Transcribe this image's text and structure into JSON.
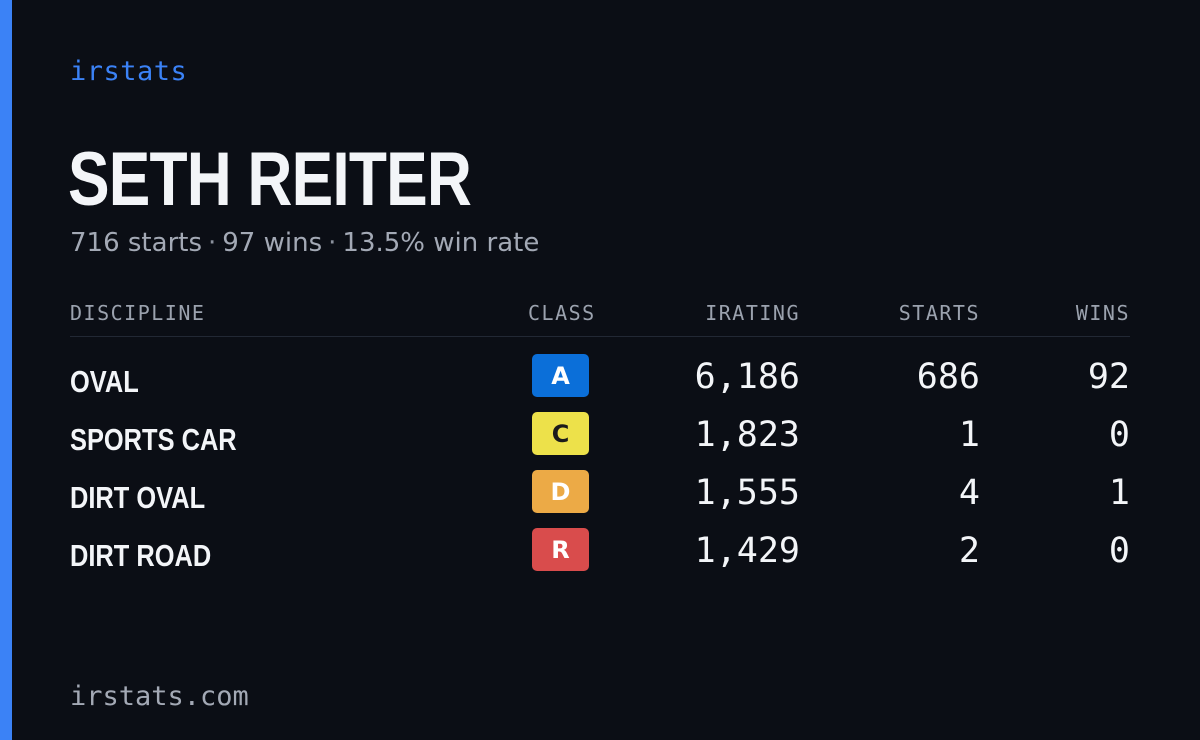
{
  "brand": "irstats",
  "driver": {
    "name": "SETH REITER",
    "starts_text": "716 starts",
    "wins_text": "97 wins",
    "win_rate_text": "13.5% win rate",
    "separator": "·"
  },
  "table": {
    "headers": {
      "discipline": "DISCIPLINE",
      "class": "CLASS",
      "irating": "IRATING",
      "starts": "STARTS",
      "wins": "WINS"
    },
    "rows": [
      {
        "discipline": "OVAL",
        "class": "A",
        "class_bg": "#0b6fd9",
        "class_fg": "#ffffff",
        "irating": "6,186",
        "starts": "686",
        "wins": "92"
      },
      {
        "discipline": "SPORTS CAR",
        "class": "C",
        "class_bg": "#ede14a",
        "class_fg": "#1b1b1b",
        "irating": "1,823",
        "starts": "1",
        "wins": "0"
      },
      {
        "discipline": "DIRT OVAL",
        "class": "D",
        "class_bg": "#ecaa46",
        "class_fg": "#ffffff",
        "irating": "1,555",
        "starts": "4",
        "wins": "1"
      },
      {
        "discipline": "DIRT ROAD",
        "class": "R",
        "class_bg": "#d94c4c",
        "class_fg": "#ffffff",
        "irating": "1,429",
        "starts": "2",
        "wins": "0"
      }
    ]
  },
  "footer": "irstats.com",
  "colors": {
    "accent": "#3b82f6",
    "background": "#0b0e15"
  }
}
